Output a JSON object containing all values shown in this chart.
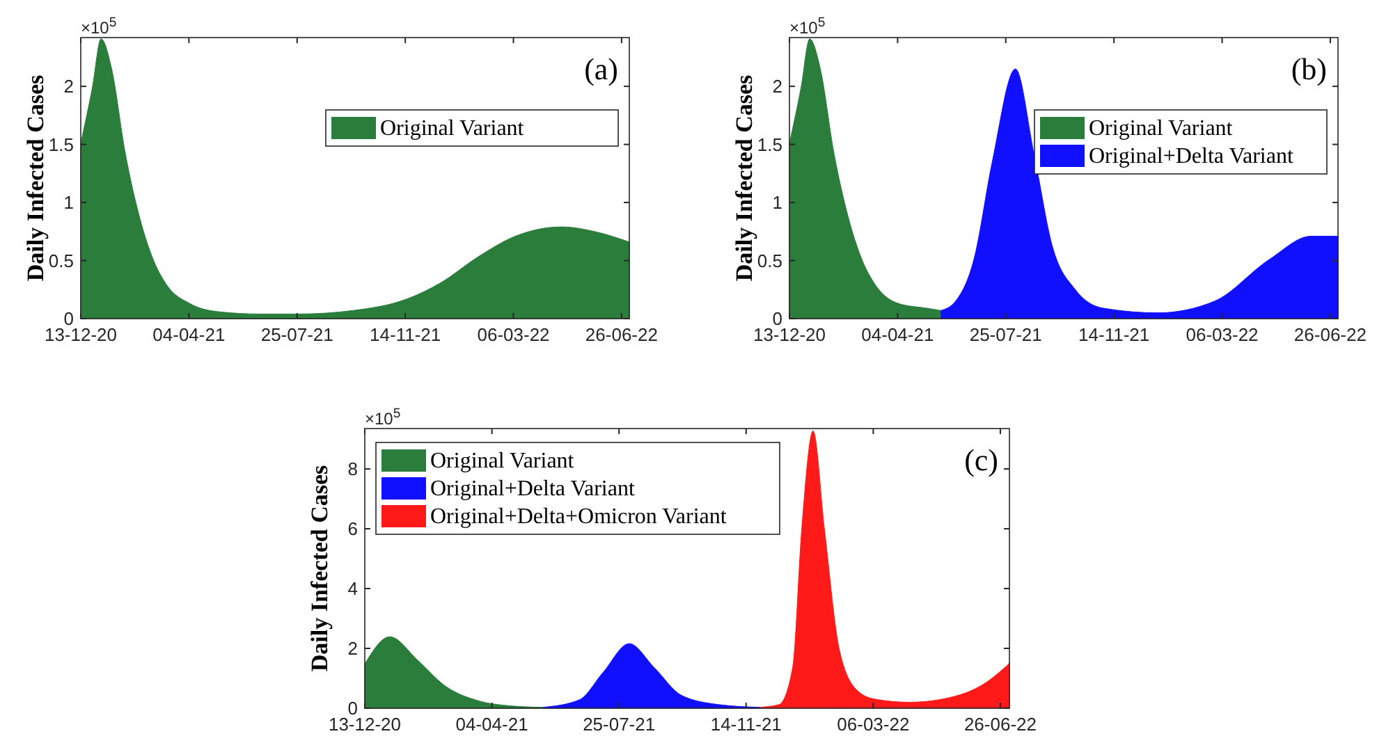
{
  "chart_data": [
    {
      "type": "area",
      "ylabel": "Daily Infected Cases",
      "annotations": [
        "×10$^{5}$",
        "(a)"
      ],
      "legend": "top right",
      "xlim": [
        "2020-12-13",
        "2022-07-04"
      ],
      "ylim": [
        0,
        2.42
      ],
      "xticks": [
        {
          "value": "2020-12-13",
          "label": "13-12-20"
        },
        {
          "value": "2021-04-04",
          "label": "04-04-21"
        },
        {
          "value": "2021-07-25",
          "label": "25-07-21"
        },
        {
          "value": "2021-11-14",
          "label": "14-11-21"
        },
        {
          "value": "2022-03-06",
          "label": "06-03-22"
        },
        {
          "value": "2022-06-26",
          "label": "26-06-22"
        }
      ],
      "yticks": [
        0,
        0.5,
        1,
        1.5,
        2
      ],
      "series": [
        {
          "name": "Original Variant",
          "color": "#2a7d3a",
          "x": [
            "2020-12-13",
            "2020-12-25",
            "2021-01-03",
            "2021-01-14",
            "2021-01-28",
            "2021-02-12",
            "2021-02-26",
            "2021-03-12",
            "2021-04-05",
            "2021-05-04",
            "2021-06-17",
            "2021-07-27",
            "2021-09-21",
            "2021-11-16",
            "2021-12-21",
            "2022-01-28",
            "2022-03-08",
            "2022-04-25",
            "2022-05-29",
            "2022-07-04"
          ],
          "values": [
            1.51,
            1.99,
            2.41,
            2.15,
            1.43,
            0.87,
            0.51,
            0.29,
            0.13,
            0.06,
            0.04,
            0.04,
            0.07,
            0.17,
            0.31,
            0.53,
            0.71,
            0.79,
            0.75,
            0.66
          ]
        }
      ]
    },
    {
      "type": "area",
      "ylabel": "Daily Infected Cases",
      "annotations": [
        "×10$^{5}$",
        "(b)"
      ],
      "legend": "top right",
      "xlim": [
        "2020-12-13",
        "2022-07-04"
      ],
      "ylim": [
        0,
        2.42
      ],
      "xticks": [
        {
          "value": "2020-12-13",
          "label": "13-12-20"
        },
        {
          "value": "2021-04-04",
          "label": "04-04-21"
        },
        {
          "value": "2021-07-25",
          "label": "25-07-21"
        },
        {
          "value": "2021-11-14",
          "label": "14-11-21"
        },
        {
          "value": "2022-03-06",
          "label": "06-03-22"
        },
        {
          "value": "2022-06-26",
          "label": "26-06-22"
        }
      ],
      "yticks": [
        0,
        0.5,
        1,
        1.5,
        2
      ],
      "series": [
        {
          "name": "Original Variant",
          "color": "#2a7d3a",
          "x": [
            "2020-12-13",
            "2020-12-25",
            "2021-01-03",
            "2021-01-14",
            "2021-01-28",
            "2021-02-12",
            "2021-02-26",
            "2021-03-12",
            "2021-04-05",
            "2021-05-04",
            "2021-05-19"
          ],
          "values": [
            1.51,
            1.99,
            2.41,
            2.15,
            1.43,
            0.87,
            0.51,
            0.29,
            0.13,
            0.09,
            0.07
          ]
        },
        {
          "name": "Original+Delta Variant",
          "color": "#1010ff",
          "x": [
            "2021-05-19",
            "2021-06-03",
            "2021-06-22",
            "2021-07-11",
            "2021-08-04",
            "2021-08-23",
            "2021-09-11",
            "2021-10-05",
            "2021-11-03",
            "2021-12-30",
            "2022-02-26",
            "2022-04-24",
            "2022-06-06",
            "2022-07-04"
          ],
          "values": [
            0.07,
            0.15,
            0.51,
            1.35,
            2.15,
            1.43,
            0.63,
            0.25,
            0.09,
            0.05,
            0.15,
            0.51,
            0.71,
            0.71
          ]
        }
      ]
    },
    {
      "type": "area",
      "ylabel": "Daily Infected Cases",
      "annotations": [
        "×10$^{5}$",
        "(c)"
      ],
      "legend": "top left",
      "xlim": [
        "2020-12-13",
        "2022-07-04"
      ],
      "ylim": [
        0,
        9.35
      ],
      "xticks": [
        {
          "value": "2020-12-13",
          "label": "13-12-20"
        },
        {
          "value": "2021-04-04",
          "label": "04-04-21"
        },
        {
          "value": "2021-07-25",
          "label": "25-07-21"
        },
        {
          "value": "2021-11-14",
          "label": "14-11-21"
        },
        {
          "value": "2022-03-06",
          "label": "06-03-22"
        },
        {
          "value": "2022-06-26",
          "label": "26-06-22"
        }
      ],
      "yticks": [
        0,
        2,
        4,
        6,
        8
      ],
      "series": [
        {
          "name": "Original Variant",
          "color": "#2a7d3a",
          "x": [
            "2020-12-13",
            "2021-01-04",
            "2021-01-29",
            "2021-02-22",
            "2021-03-23",
            "2021-04-20",
            "2021-05-19"
          ],
          "values": [
            1.48,
            2.39,
            1.59,
            0.74,
            0.25,
            0.08,
            0.03
          ]
        },
        {
          "name": "Original+Delta Variant",
          "color": "#1010ff",
          "x": [
            "2021-05-19",
            "2021-06-20",
            "2021-07-11",
            "2021-08-03",
            "2021-08-25",
            "2021-09-18",
            "2021-10-21",
            "2021-11-26"
          ],
          "values": [
            0.03,
            0.28,
            1.2,
            2.16,
            1.36,
            0.43,
            0.12,
            0.03
          ]
        },
        {
          "name": "Original+Delta+Omicron Variant",
          "color": "#ff1a1a",
          "x": [
            "2021-11-26",
            "2021-12-13",
            "2021-12-25",
            "2022-01-02",
            "2022-01-12",
            "2022-01-22",
            "2022-02-04",
            "2022-02-20",
            "2022-03-08",
            "2022-04-07",
            "2022-05-17",
            "2022-06-11",
            "2022-07-04"
          ],
          "values": [
            0.03,
            0.12,
            1.36,
            5.99,
            9.27,
            5.99,
            1.98,
            0.59,
            0.3,
            0.2,
            0.4,
            0.8,
            1.5
          ]
        }
      ]
    }
  ]
}
